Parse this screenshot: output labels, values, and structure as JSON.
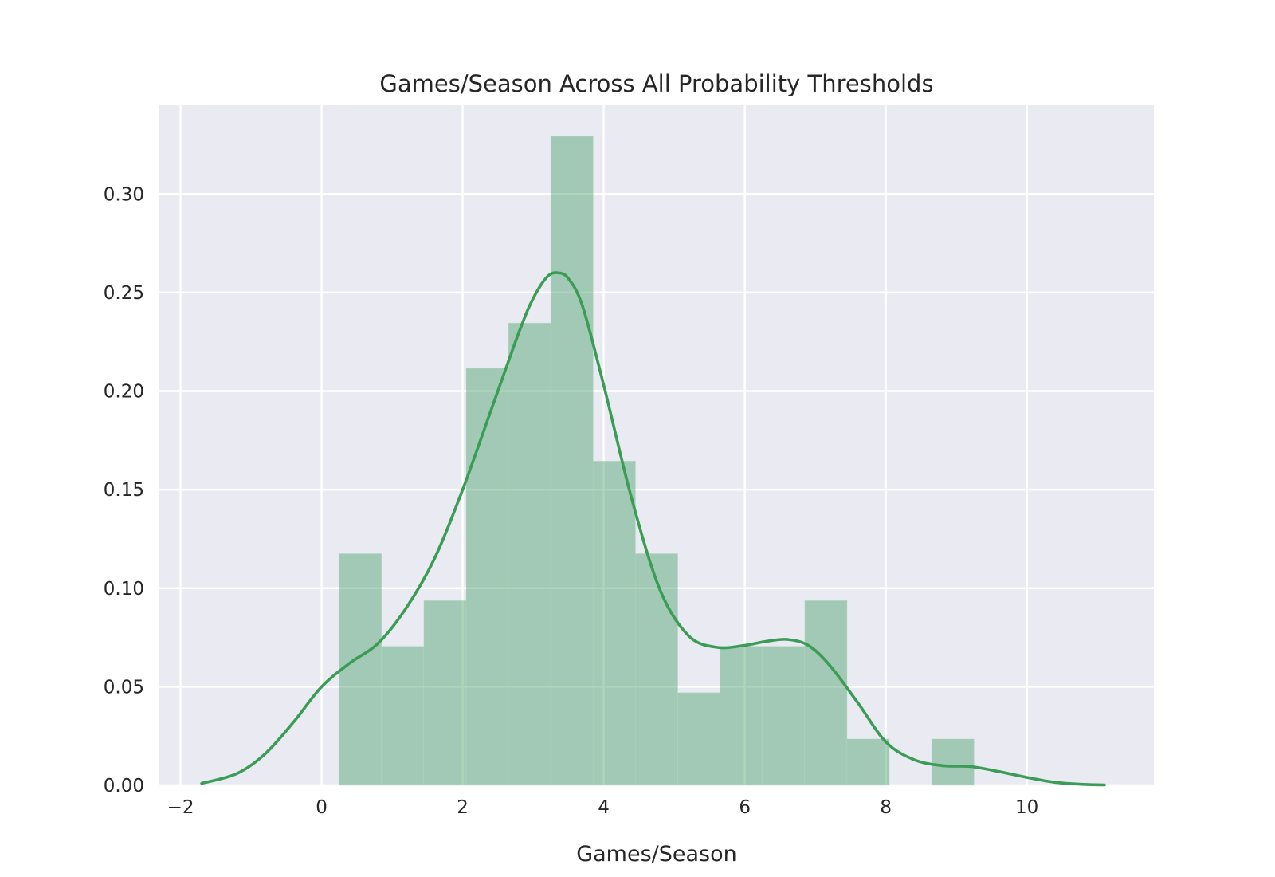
{
  "chart_data": {
    "type": "histogram",
    "title": "Games/Season Across All Probability Thresholds",
    "xlabel": "Games/Season",
    "ylabel": "",
    "xlim": [
      -2.3,
      11.8
    ],
    "ylim": [
      0,
      0.345
    ],
    "grid": true,
    "xticks": [
      -2,
      0,
      2,
      4,
      6,
      8,
      10
    ],
    "xtick_labels": [
      "−2",
      "0",
      "2",
      "4",
      "6",
      "8",
      "10"
    ],
    "yticks": [
      0.0,
      0.05,
      0.1,
      0.15,
      0.2,
      0.25,
      0.3
    ],
    "ytick_labels": [
      "0.00",
      "0.05",
      "0.10",
      "0.15",
      "0.20",
      "0.25",
      "0.30"
    ],
    "bar_color": "#4ca16b",
    "line_color": "#3a9c55",
    "background_color": "#eaeaf2",
    "histogram": {
      "bin_edges": [
        0.25,
        0.85,
        1.45,
        2.05,
        2.65,
        3.25,
        3.85,
        4.45,
        5.05,
        5.65,
        6.25,
        6.85,
        7.45,
        8.05,
        8.65,
        9.25
      ],
      "density": [
        0.1175,
        0.0705,
        0.0937,
        0.2115,
        0.2345,
        0.3292,
        0.1645,
        0.1175,
        0.047,
        0.0705,
        0.0705,
        0.0937,
        0.0235,
        0.0,
        0.0235
      ]
    },
    "kde": {
      "x": [
        -1.7,
        -1.2,
        -0.8,
        -0.4,
        0.0,
        0.4,
        0.8,
        1.2,
        1.6,
        2.0,
        2.4,
        2.8,
        3.0,
        3.2,
        3.35,
        3.5,
        3.7,
        4.0,
        4.4,
        4.8,
        5.2,
        5.6,
        6.0,
        6.3,
        6.6,
        6.9,
        7.2,
        7.6,
        8.0,
        8.4,
        8.8,
        9.2,
        9.6,
        10.0,
        10.4,
        10.8,
        11.1
      ],
      "y": [
        0.001,
        0.006,
        0.016,
        0.032,
        0.05,
        0.062,
        0.072,
        0.09,
        0.115,
        0.15,
        0.19,
        0.23,
        0.247,
        0.258,
        0.26,
        0.257,
        0.243,
        0.203,
        0.145,
        0.099,
        0.076,
        0.07,
        0.071,
        0.073,
        0.074,
        0.071,
        0.061,
        0.042,
        0.022,
        0.013,
        0.01,
        0.0095,
        0.007,
        0.004,
        0.0015,
        0.0005,
        0.0002
      ]
    }
  }
}
